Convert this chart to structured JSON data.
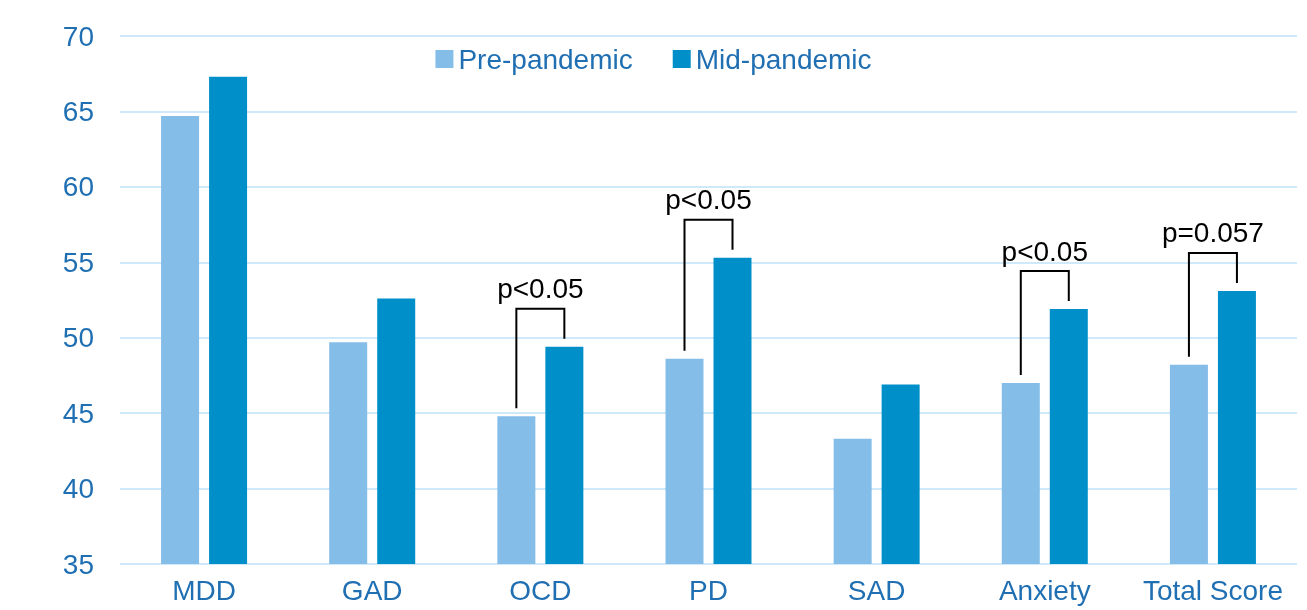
{
  "chart_data": {
    "type": "bar",
    "categories": [
      "MDD",
      "GAD",
      "OCD",
      "PD",
      "SAD",
      "Anxiety",
      "Total Score"
    ],
    "series": [
      {
        "name": "Pre-pandemic",
        "color": "#85bde9",
        "values": [
          64.7,
          49.7,
          44.8,
          48.6,
          43.3,
          47.0,
          48.2
        ]
      },
      {
        "name": "Mid-pandemic",
        "color": "#008fc8",
        "values": [
          67.3,
          52.6,
          49.4,
          55.3,
          46.9,
          51.9,
          53.1
        ]
      }
    ],
    "ylim": [
      35,
      70
    ],
    "yticks": [
      35,
      40,
      45,
      50,
      55,
      60,
      65,
      70
    ],
    "grid": "y",
    "legend": "top",
    "annotations": [
      "p<0.05",
      "p<0.05",
      "p<0.05",
      "p=0.057"
    ]
  }
}
